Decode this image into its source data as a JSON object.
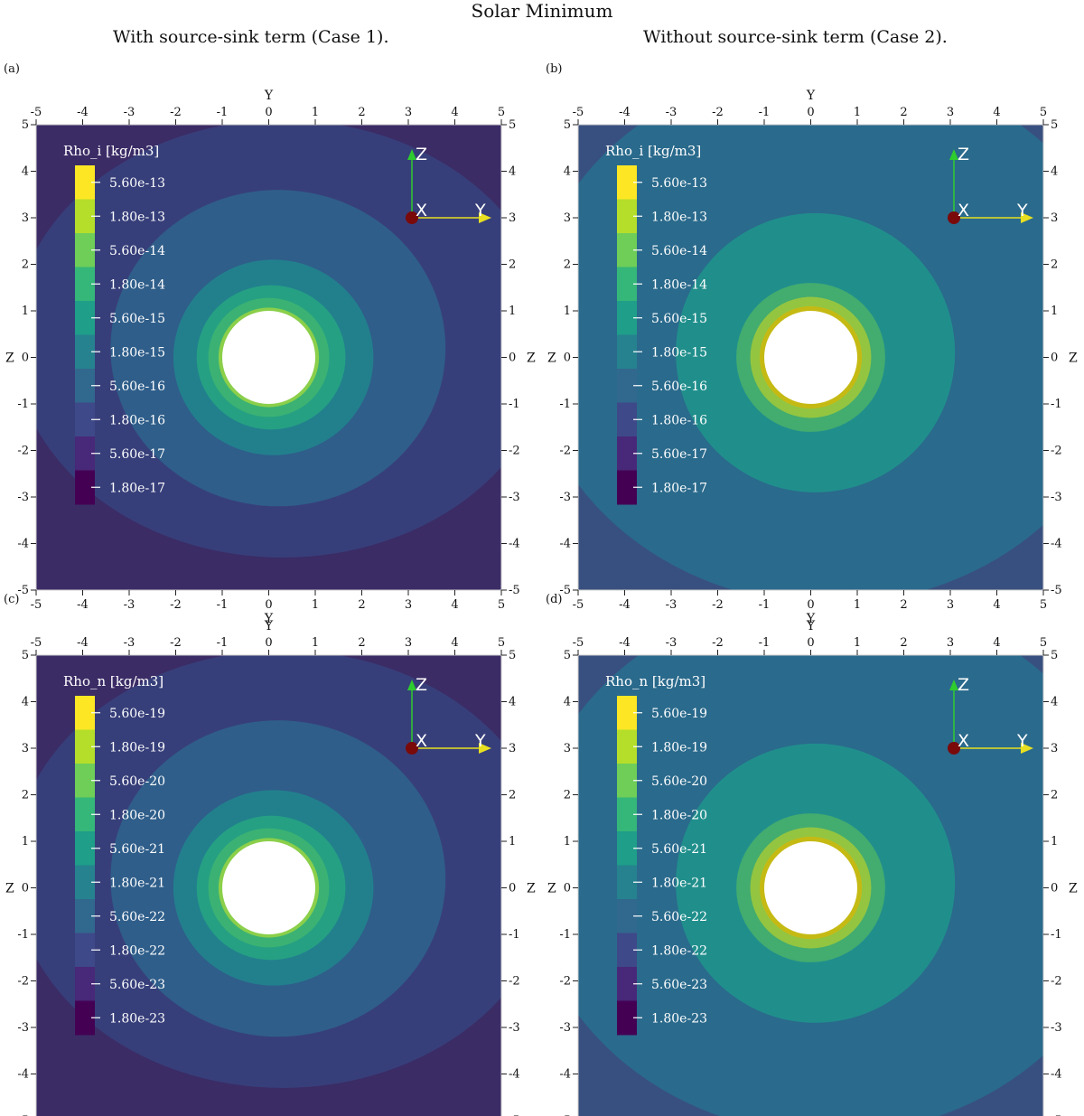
{
  "page": {
    "title": "Solar Minimum",
    "left_column_title": "With source-sink term (Case 1).",
    "right_column_title": "Without source-sink term (Case 2)."
  },
  "colors": {
    "background_case1": "#3b2c66",
    "background_case2": "#38507f",
    "hole": "#ffffff",
    "tick": "#222222"
  },
  "chart_data": [
    {
      "type": "heatmap",
      "panel_label": "(a)",
      "case": "Case 1",
      "title": "Rho_i [kg/m3]",
      "xlabel": "Y",
      "ylabel": "Z",
      "xlim": [
        -5,
        5
      ],
      "ylim": [
        -5,
        5
      ],
      "ticks": [
        -5,
        -4,
        -3,
        -2,
        -1,
        0,
        1,
        2,
        3,
        4,
        5
      ],
      "colorbar": {
        "labels": [
          "5.60e-13",
          "1.80e-13",
          "5.60e-14",
          "1.80e-14",
          "5.60e-15",
          "1.80e-15",
          "5.60e-16",
          "1.80e-16",
          "5.60e-17",
          "1.80e-17"
        ],
        "colors": [
          "#fde725",
          "#b5de2b",
          "#6ece58",
          "#35b779",
          "#1f9e89",
          "#26828e",
          "#31688e",
          "#3e4989",
          "#482878",
          "#440154"
        ]
      },
      "field": {
        "background_color": "#3b2c66",
        "contours": [
          {
            "rx": 5.8,
            "ry": 4.7,
            "cx": 0.3,
            "cy": 0.4,
            "color": "#373f7a"
          },
          {
            "rx": 3.6,
            "ry": 3.4,
            "cx": 0.2,
            "cy": 0.2,
            "color": "#2f5e8a"
          },
          {
            "rx": 2.15,
            "ry": 2.1,
            "cx": 0.1,
            "cy": 0.0,
            "color": "#22808d"
          },
          {
            "rx": 1.6,
            "ry": 1.55,
            "cx": 0.05,
            "cy": 0.0,
            "color": "#25a083"
          },
          {
            "rx": 1.3,
            "ry": 1.28,
            "cx": 0.0,
            "cy": 0.0,
            "color": "#3bb273"
          },
          {
            "rx": 1.08,
            "ry": 1.07,
            "cx": 0.0,
            "cy": 0.0,
            "color": "#8bcf4a"
          }
        ],
        "hole_radius": 1.0
      }
    },
    {
      "type": "heatmap",
      "panel_label": "(b)",
      "case": "Case 2",
      "title": "Rho_i [kg/m3]",
      "xlabel": "Y",
      "ylabel": "Z",
      "xlim": [
        -5,
        5
      ],
      "ylim": [
        -5,
        5
      ],
      "ticks": [
        -5,
        -4,
        -3,
        -2,
        -1,
        0,
        1,
        2,
        3,
        4,
        5
      ],
      "colorbar": {
        "labels": [
          "5.60e-13",
          "1.80e-13",
          "5.60e-14",
          "1.80e-14",
          "5.60e-15",
          "1.80e-15",
          "5.60e-16",
          "1.80e-16",
          "5.60e-17",
          "1.80e-17"
        ],
        "colors": [
          "#fde725",
          "#b5de2b",
          "#6ece58",
          "#35b779",
          "#1f9e89",
          "#26828e",
          "#31688e",
          "#3e4989",
          "#482878",
          "#440154"
        ]
      },
      "field": {
        "background_color": "#38507f",
        "contours": [
          {
            "rx": 6.5,
            "ry": 5.8,
            "cx": 0.4,
            "cy": 0.5,
            "color": "#2a6a8c"
          },
          {
            "rx": 3.0,
            "ry": 3.0,
            "cx": 0.1,
            "cy": 0.1,
            "color": "#208f8c"
          },
          {
            "rx": 1.6,
            "ry": 1.6,
            "cx": 0.0,
            "cy": 0.0,
            "color": "#43ac6f"
          },
          {
            "rx": 1.3,
            "ry": 1.3,
            "cx": 0.0,
            "cy": 0.0,
            "color": "#93c541"
          },
          {
            "rx": 1.1,
            "ry": 1.1,
            "cx": 0.0,
            "cy": 0.0,
            "color": "#c5ba14"
          }
        ],
        "hole_radius": 1.0
      }
    },
    {
      "type": "heatmap",
      "panel_label": "(c)",
      "case": "Case 1",
      "title": "Rho_n [kg/m3]",
      "xlabel": "Y",
      "ylabel": "Z",
      "xlim": [
        -5,
        5
      ],
      "ylim": [
        -5,
        5
      ],
      "ticks": [
        -5,
        -4,
        -3,
        -2,
        -1,
        0,
        1,
        2,
        3,
        4,
        5
      ],
      "colorbar": {
        "labels": [
          "5.60e-19",
          "1.80e-19",
          "5.60e-20",
          "1.80e-20",
          "5.60e-21",
          "1.80e-21",
          "5.60e-22",
          "1.80e-22",
          "5.60e-23",
          "1.80e-23"
        ],
        "colors": [
          "#fde725",
          "#b5de2b",
          "#6ece58",
          "#35b779",
          "#1f9e89",
          "#26828e",
          "#31688e",
          "#3e4989",
          "#482878",
          "#440154"
        ]
      },
      "field": {
        "background_color": "#3b2c66",
        "contours": [
          {
            "rx": 5.8,
            "ry": 4.7,
            "cx": 0.3,
            "cy": 0.4,
            "color": "#373f7a"
          },
          {
            "rx": 3.6,
            "ry": 3.4,
            "cx": 0.2,
            "cy": 0.2,
            "color": "#2f5e8a"
          },
          {
            "rx": 2.15,
            "ry": 2.1,
            "cx": 0.1,
            "cy": 0.0,
            "color": "#22808d"
          },
          {
            "rx": 1.6,
            "ry": 1.55,
            "cx": 0.05,
            "cy": 0.0,
            "color": "#25a083"
          },
          {
            "rx": 1.3,
            "ry": 1.28,
            "cx": 0.0,
            "cy": 0.0,
            "color": "#3bb273"
          },
          {
            "rx": 1.08,
            "ry": 1.07,
            "cx": 0.0,
            "cy": 0.0,
            "color": "#8bcf4a"
          }
        ],
        "hole_radius": 1.0
      }
    },
    {
      "type": "heatmap",
      "panel_label": "(d)",
      "case": "Case 2",
      "title": "Rho_n [kg/m3]",
      "xlabel": "Y",
      "ylabel": "Z",
      "xlim": [
        -5,
        5
      ],
      "ylim": [
        -5,
        5
      ],
      "ticks": [
        -5,
        -4,
        -3,
        -2,
        -1,
        0,
        1,
        2,
        3,
        4,
        5
      ],
      "colorbar": {
        "labels": [
          "5.60e-19",
          "1.80e-19",
          "5.60e-20",
          "1.80e-20",
          "5.60e-21",
          "1.80e-21",
          "5.60e-22",
          "1.80e-22",
          "5.60e-23",
          "1.80e-23"
        ],
        "colors": [
          "#fde725",
          "#b5de2b",
          "#6ece58",
          "#35b779",
          "#1f9e89",
          "#26828e",
          "#31688e",
          "#3e4989",
          "#482878",
          "#440154"
        ]
      },
      "field": {
        "background_color": "#38507f",
        "contours": [
          {
            "rx": 6.5,
            "ry": 5.8,
            "cx": 0.4,
            "cy": 0.5,
            "color": "#2a6a8c"
          },
          {
            "rx": 3.0,
            "ry": 3.0,
            "cx": 0.1,
            "cy": 0.1,
            "color": "#208f8c"
          },
          {
            "rx": 1.6,
            "ry": 1.6,
            "cx": 0.0,
            "cy": 0.0,
            "color": "#43ac6f"
          },
          {
            "rx": 1.3,
            "ry": 1.3,
            "cx": 0.0,
            "cy": 0.0,
            "color": "#93c541"
          },
          {
            "rx": 1.1,
            "ry": 1.1,
            "cx": 0.0,
            "cy": 0.0,
            "color": "#c5ba14"
          }
        ],
        "hole_radius": 1.0
      }
    }
  ],
  "orientation_axes": {
    "labels": [
      "Z",
      "X",
      "Y"
    ],
    "z_color": "#2ecc2e",
    "y_color": "#e8e020",
    "x_color": "#7a0a0a"
  }
}
